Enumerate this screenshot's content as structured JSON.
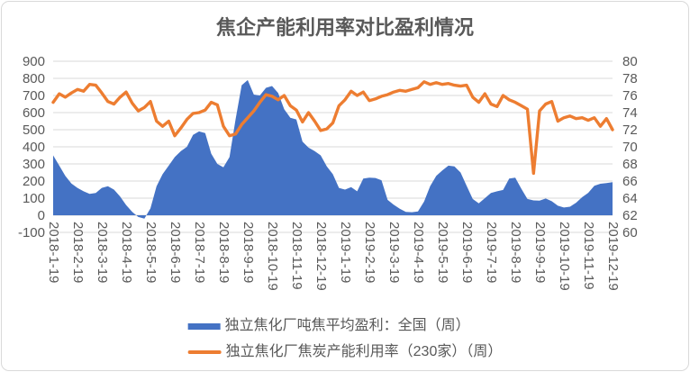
{
  "title": "焦企产能利用率对比盈利情况",
  "colors": {
    "profit_area": "#4472C4",
    "utilization_line": "#ED7D31",
    "gridline": "#D9D9D9",
    "frame_border": "#D9D9D9",
    "text": "#595959"
  },
  "legend": {
    "items": [
      {
        "label": "独立焦化厂吨焦平均盈利：全国（周）",
        "swatch": "area",
        "color": "#4472C4"
      },
      {
        "label": "独立焦化厂焦炭产能利用率（230家）（周）",
        "swatch": "line",
        "color": "#ED7D31"
      }
    ]
  },
  "chart_data": {
    "type": "area+line combo, dual axis, weekly data",
    "title": "焦企产能利用率对比盈利情况",
    "grid": true,
    "legend_position": "bottom",
    "x_label_rotation_deg": 90,
    "categories": [
      "2018-1-19",
      "2018-2-19",
      "2018-3-19",
      "2018-4-19",
      "2018-5-19",
      "2018-6-19",
      "2018-7-19",
      "2018-8-19",
      "2018-9-19",
      "2018-10-19",
      "2018-11-19",
      "2018-12-19",
      "2019-1-19",
      "2019-2-19",
      "2019-3-19",
      "2019-4-19",
      "2019-5-19",
      "2019-6-19",
      "2019-7-19",
      "2019-8-19",
      "2019-9-19",
      "2019-10-19",
      "2019-11-19",
      "2019-12-19"
    ],
    "points_per_category_interval": 4,
    "left_axis": {
      "min": -100,
      "max": 900,
      "step": 100,
      "ticks": [
        "900",
        "800",
        "700",
        "600",
        "500",
        "400",
        "300",
        "200",
        "100",
        "0",
        "-100"
      ]
    },
    "right_axis": {
      "min": 60,
      "max": 80,
      "step": 2,
      "ticks": [
        "80",
        "78",
        "76",
        "74",
        "72",
        "70",
        "68",
        "66",
        "64",
        "62",
        "60"
      ]
    },
    "series": [
      {
        "name": "独立焦化厂吨焦平均盈利：全国（周）",
        "type": "area",
        "axis": "left",
        "color": "#4472C4",
        "values": [
          350,
          290,
          230,
          185,
          160,
          140,
          125,
          130,
          160,
          170,
          150,
          110,
          60,
          20,
          -10,
          -20,
          40,
          170,
          240,
          290,
          340,
          375,
          400,
          470,
          490,
          480,
          360,
          300,
          280,
          340,
          560,
          760,
          790,
          705,
          700,
          745,
          755,
          715,
          620,
          570,
          560,
          430,
          395,
          375,
          350,
          285,
          240,
          160,
          150,
          165,
          140,
          215,
          220,
          218,
          205,
          90,
          62,
          38,
          20,
          18,
          22,
          80,
          170,
          230,
          262,
          290,
          285,
          250,
          172,
          95,
          70,
          100,
          130,
          140,
          148,
          215,
          220,
          155,
          95,
          87,
          86,
          98,
          82,
          56,
          45,
          50,
          73,
          106,
          131,
          172,
          184,
          188,
          193
        ]
      },
      {
        "name": "独立焦化厂焦炭产能利用率（230家）（周）",
        "type": "line",
        "axis": "right",
        "color": "#ED7D31",
        "values": [
          75.2,
          76.2,
          75.8,
          76.3,
          76.7,
          76.5,
          77.3,
          77.2,
          76.3,
          75.3,
          75.0,
          75.8,
          76.4,
          75.1,
          74.2,
          74.6,
          75.3,
          73.0,
          72.4,
          73.0,
          71.3,
          72.2,
          73.2,
          73.9,
          74.0,
          74.3,
          75.2,
          74.9,
          72.4,
          71.3,
          71.5,
          72.6,
          73.4,
          74.2,
          75.2,
          76.1,
          75.9,
          75.5,
          76.0,
          74.8,
          74.3,
          72.9,
          74.0,
          73.0,
          71.9,
          72.1,
          72.8,
          74.8,
          75.5,
          76.5,
          76.0,
          76.4,
          75.4,
          75.6,
          75.9,
          76.1,
          76.4,
          76.6,
          76.5,
          76.7,
          76.9,
          77.6,
          77.3,
          77.5,
          77.3,
          77.4,
          77.2,
          77.1,
          77.2,
          75.8,
          75.2,
          76.2,
          75.0,
          74.7,
          76.0,
          75.5,
          75.2,
          74.8,
          74.4,
          66.9,
          74.2,
          75.0,
          75.3,
          73.0,
          73.4,
          73.6,
          73.3,
          73.4,
          73.1,
          73.4,
          72.4,
          73.3,
          72.0
        ]
      }
    ]
  }
}
